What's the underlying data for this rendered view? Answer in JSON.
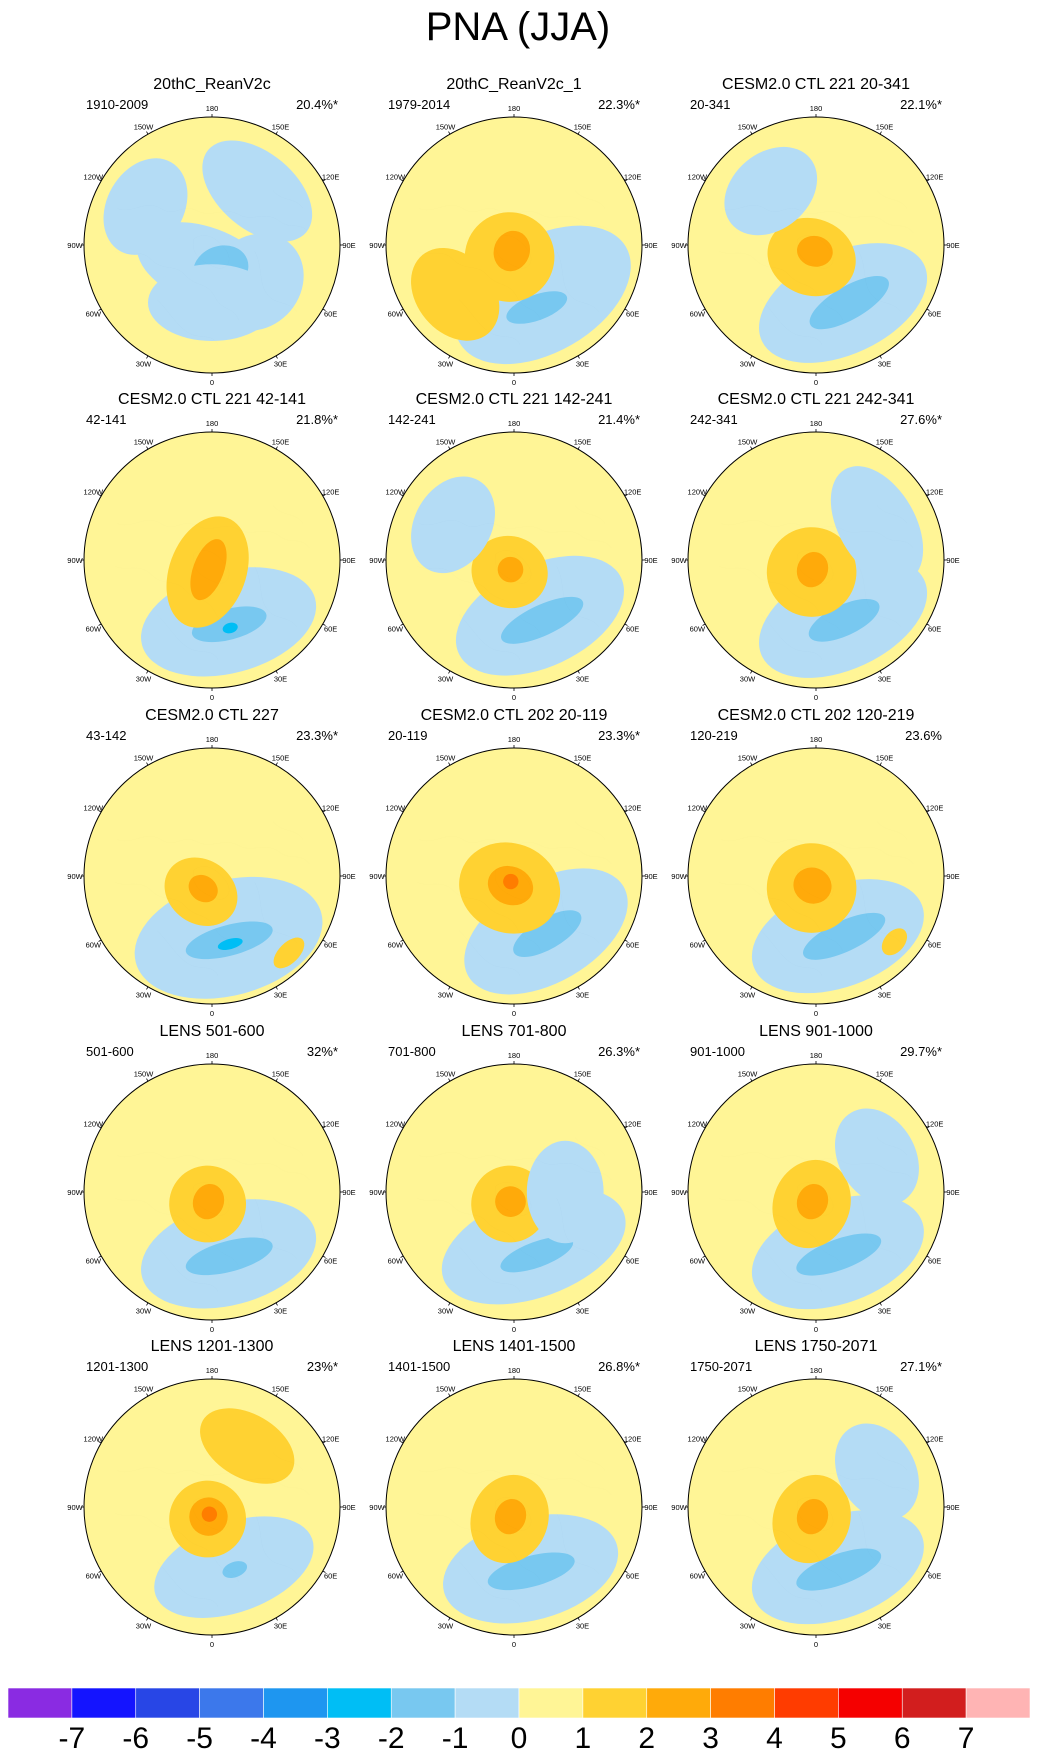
{
  "chart_data": {
    "type": "polar-contour-panels",
    "title": "PNA (JJA)",
    "longitude_labels": [
      "180",
      "150E",
      "120E",
      "90E",
      "60E",
      "30E",
      "0",
      "30W",
      "60W",
      "90W",
      "120W",
      "150W"
    ],
    "colorbar": {
      "labels": [
        "-7",
        "-6",
        "-5",
        "-4",
        "-3",
        "-2",
        "-1",
        "0",
        "1",
        "2",
        "3",
        "4",
        "5",
        "6",
        "7"
      ],
      "colors": [
        "#8a2be2",
        "#1414ff",
        "#2846e6",
        "#3c78eb",
        "#1e96f0",
        "#00bef5",
        "#78c8f0",
        "#b4dcf5",
        "#fff596",
        "#ffd232",
        "#ffaa0a",
        "#ff7d00",
        "#ff3c00",
        "#f50000",
        "#d21e1e",
        "#ffb4b4"
      ]
    },
    "panels": [
      {
        "title": "20thC_ReanV2c",
        "period": "1910-2009",
        "percent": "20.4%*",
        "features": [
          {
            "lon": 200,
            "r": 0.17,
            "value": -1,
            "w": 0.55,
            "h": 0.3
          },
          {
            "lon": 130,
            "r": 0.45,
            "value": -1,
            "w": 0.4,
            "h": 0.35
          },
          {
            "lon": 160,
            "r": 0.2,
            "value": -2,
            "w": 0.22,
            "h": 0.18
          },
          {
            "lon": 40,
            "r": 0.55,
            "value": -1,
            "w": 0.5,
            "h": 0.3
          },
          {
            "lon": 180,
            "r": 0.45,
            "value": -1,
            "w": 0.5,
            "h": 0.3
          },
          {
            "lon": 300,
            "r": 0.6,
            "value": -1,
            "w": 0.4,
            "h": 0.3
          }
        ]
      },
      {
        "title": "20thC_ReanV2c_1",
        "period": "1979-2014",
        "percent": "22.3%*",
        "features": [
          {
            "lon": 150,
            "r": 0.45,
            "value": -1,
            "w": 0.75,
            "h": 0.45
          },
          {
            "lon": 160,
            "r": 0.52,
            "value": -2,
            "w": 0.25,
            "h": 0.1
          },
          {
            "lon": 200,
            "r": 0.1,
            "value": 1,
            "w": 0.35,
            "h": 0.35
          },
          {
            "lon": 200,
            "r": 0.05,
            "value": 2,
            "w": 0.14,
            "h": 0.16
          },
          {
            "lon": 230,
            "r": 0.6,
            "value": 1,
            "w": 0.4,
            "h": 0.3
          }
        ]
      },
      {
        "title": "CESM2.0 CTL 221 20-341",
        "period": "20-341",
        "percent": "22.1%*",
        "features": [
          {
            "lon": 155,
            "r": 0.5,
            "value": -1,
            "w": 0.7,
            "h": 0.4
          },
          {
            "lon": 150,
            "r": 0.52,
            "value": -2,
            "w": 0.35,
            "h": 0.13
          },
          {
            "lon": 200,
            "r": 0.1,
            "value": 1,
            "w": 0.35,
            "h": 0.3
          },
          {
            "lon": 190,
            "r": 0.05,
            "value": 2,
            "w": 0.14,
            "h": 0.12
          },
          {
            "lon": 320,
            "r": 0.55,
            "value": -1,
            "w": 0.4,
            "h": 0.3
          }
        ]
      },
      {
        "title": "CESM2.0 CTL 221 42-141",
        "period": "42-141",
        "percent": "21.8%*",
        "features": [
          {
            "lon": 165,
            "r": 0.5,
            "value": -1,
            "w": 0.7,
            "h": 0.4
          },
          {
            "lon": 165,
            "r": 0.52,
            "value": -2,
            "w": 0.3,
            "h": 0.12
          },
          {
            "lon": 165,
            "r": 0.55,
            "value": -3,
            "w": 0.06,
            "h": 0.04
          },
          {
            "lon": 200,
            "r": 0.1,
            "value": 1,
            "w": 0.3,
            "h": 0.45
          },
          {
            "lon": 200,
            "r": 0.08,
            "value": 2,
            "w": 0.12,
            "h": 0.25
          }
        ]
      },
      {
        "title": "CESM2.0 CTL 221 142-241",
        "period": "142-241",
        "percent": "21.4%*",
        "features": [
          {
            "lon": 155,
            "r": 0.48,
            "value": -1,
            "w": 0.7,
            "h": 0.4
          },
          {
            "lon": 155,
            "r": 0.52,
            "value": -2,
            "w": 0.35,
            "h": 0.12
          },
          {
            "lon": 200,
            "r": 0.1,
            "value": 1,
            "w": 0.3,
            "h": 0.28
          },
          {
            "lon": 200,
            "r": 0.08,
            "value": 2,
            "w": 0.1,
            "h": 0.1
          },
          {
            "lon": 300,
            "r": 0.55,
            "value": -1,
            "w": 0.4,
            "h": 0.3
          }
        ]
      },
      {
        "title": "CESM2.0 CTL 221 242-341",
        "period": "242-341",
        "percent": "27.6%*",
        "features": [
          {
            "lon": 155,
            "r": 0.5,
            "value": -1,
            "w": 0.7,
            "h": 0.4
          },
          {
            "lon": 155,
            "r": 0.52,
            "value": -2,
            "w": 0.3,
            "h": 0.12
          },
          {
            "lon": 200,
            "r": 0.1,
            "value": 1,
            "w": 0.35,
            "h": 0.35
          },
          {
            "lon": 200,
            "r": 0.08,
            "value": 2,
            "w": 0.12,
            "h": 0.14
          },
          {
            "lon": 60,
            "r": 0.55,
            "value": -1,
            "w": 0.5,
            "h": 0.3
          }
        ]
      },
      {
        "title": "CESM2.0 CTL 227",
        "period": "43-142",
        "percent": "23.3%*",
        "features": [
          {
            "lon": 165,
            "r": 0.5,
            "value": -1,
            "w": 0.75,
            "h": 0.45
          },
          {
            "lon": 165,
            "r": 0.52,
            "value": -2,
            "w": 0.35,
            "h": 0.12
          },
          {
            "lon": 165,
            "r": 0.55,
            "value": -3,
            "w": 0.1,
            "h": 0.04
          },
          {
            "lon": 215,
            "r": 0.15,
            "value": 1,
            "w": 0.3,
            "h": 0.25
          },
          {
            "lon": 215,
            "r": 0.12,
            "value": 2,
            "w": 0.12,
            "h": 0.1
          },
          {
            "lon": 135,
            "r": 0.85,
            "value": 1,
            "w": 0.15,
            "h": 0.08
          }
        ]
      },
      {
        "title": "CESM2.0 CTL 202 20-119",
        "period": "20-119",
        "percent": "23.3%*",
        "features": [
          {
            "lon": 150,
            "r": 0.5,
            "value": -1,
            "w": 0.7,
            "h": 0.4
          },
          {
            "lon": 150,
            "r": 0.52,
            "value": -2,
            "w": 0.3,
            "h": 0.12
          },
          {
            "lon": 200,
            "r": 0.1,
            "value": 1,
            "w": 0.4,
            "h": 0.35
          },
          {
            "lon": 200,
            "r": 0.08,
            "value": 2,
            "w": 0.18,
            "h": 0.15
          },
          {
            "lon": 210,
            "r": 0.05,
            "value": 3,
            "w": 0.06,
            "h": 0.06
          }
        ]
      },
      {
        "title": "CESM2.0 CTL 202 120-219",
        "period": "120-219",
        "percent": "23.6%",
        "features": [
          {
            "lon": 160,
            "r": 0.5,
            "value": -1,
            "w": 0.7,
            "h": 0.4
          },
          {
            "lon": 155,
            "r": 0.52,
            "value": -2,
            "w": 0.35,
            "h": 0.12
          },
          {
            "lon": 200,
            "r": 0.1,
            "value": 1,
            "w": 0.35,
            "h": 0.35
          },
          {
            "lon": 200,
            "r": 0.08,
            "value": 2,
            "w": 0.15,
            "h": 0.14
          },
          {
            "lon": 130,
            "r": 0.8,
            "value": 1,
            "w": 0.12,
            "h": 0.08
          }
        ]
      },
      {
        "title": "LENS 501-600",
        "period": "501-600",
        "percent": "32%*",
        "features": [
          {
            "lon": 165,
            "r": 0.5,
            "value": -1,
            "w": 0.7,
            "h": 0.4
          },
          {
            "lon": 165,
            "r": 0.52,
            "value": -2,
            "w": 0.35,
            "h": 0.12
          },
          {
            "lon": 200,
            "r": 0.1,
            "value": 1,
            "w": 0.3,
            "h": 0.3
          },
          {
            "lon": 200,
            "r": 0.08,
            "value": 2,
            "w": 0.12,
            "h": 0.14
          }
        ]
      },
      {
        "title": "LENS 701-800",
        "period": "701-800",
        "percent": "26.3%*",
        "features": [
          {
            "lon": 160,
            "r": 0.45,
            "value": -1,
            "w": 0.75,
            "h": 0.4
          },
          {
            "lon": 160,
            "r": 0.52,
            "value": -2,
            "w": 0.3,
            "h": 0.1
          },
          {
            "lon": 200,
            "r": 0.1,
            "value": 1,
            "w": 0.3,
            "h": 0.3
          },
          {
            "lon": 200,
            "r": 0.08,
            "value": 2,
            "w": 0.12,
            "h": 0.12
          },
          {
            "lon": 90,
            "r": 0.4,
            "value": -1,
            "w": 0.4,
            "h": 0.3
          }
        ]
      },
      {
        "title": "LENS 901-1000",
        "period": "901-1000",
        "percent": "29.7%*",
        "features": [
          {
            "lon": 160,
            "r": 0.5,
            "value": -1,
            "w": 0.7,
            "h": 0.4
          },
          {
            "lon": 160,
            "r": 0.52,
            "value": -2,
            "w": 0.35,
            "h": 0.12
          },
          {
            "lon": 200,
            "r": 0.1,
            "value": 1,
            "w": 0.3,
            "h": 0.35
          },
          {
            "lon": 200,
            "r": 0.08,
            "value": 2,
            "w": 0.12,
            "h": 0.14
          },
          {
            "lon": 60,
            "r": 0.55,
            "value": -1,
            "w": 0.4,
            "h": 0.3
          }
        ]
      },
      {
        "title": "LENS 1201-1300",
        "period": "1201-1300",
        "percent": "23%*",
        "features": [
          {
            "lon": 160,
            "r": 0.5,
            "value": -1,
            "w": 0.65,
            "h": 0.35
          },
          {
            "lon": 160,
            "r": 0.52,
            "value": -2,
            "w": 0.1,
            "h": 0.06
          },
          {
            "lon": 200,
            "r": 0.1,
            "value": 1,
            "w": 0.3,
            "h": 0.3
          },
          {
            "lon": 200,
            "r": 0.08,
            "value": 2,
            "w": 0.15,
            "h": 0.15
          },
          {
            "lon": 200,
            "r": 0.06,
            "value": 3,
            "w": 0.06,
            "h": 0.06
          },
          {
            "lon": 30,
            "r": 0.55,
            "value": 1,
            "w": 0.4,
            "h": 0.25
          }
        ]
      },
      {
        "title": "LENS 1401-1500",
        "period": "1401-1500",
        "percent": "26.8%*",
        "features": [
          {
            "lon": 165,
            "r": 0.5,
            "value": -1,
            "w": 0.7,
            "h": 0.4
          },
          {
            "lon": 165,
            "r": 0.52,
            "value": -2,
            "w": 0.35,
            "h": 0.12
          },
          {
            "lon": 200,
            "r": 0.1,
            "value": 1,
            "w": 0.3,
            "h": 0.35
          },
          {
            "lon": 200,
            "r": 0.08,
            "value": 2,
            "w": 0.12,
            "h": 0.14
          }
        ]
      },
      {
        "title": "LENS 1750-2071",
        "period": "1750-2071",
        "percent": "27.1%*",
        "features": [
          {
            "lon": 160,
            "r": 0.5,
            "value": -1,
            "w": 0.7,
            "h": 0.4
          },
          {
            "lon": 160,
            "r": 0.52,
            "value": -2,
            "w": 0.35,
            "h": 0.12
          },
          {
            "lon": 200,
            "r": 0.1,
            "value": 1,
            "w": 0.3,
            "h": 0.35
          },
          {
            "lon": 200,
            "r": 0.08,
            "value": 2,
            "w": 0.12,
            "h": 0.14
          },
          {
            "lon": 60,
            "r": 0.55,
            "value": -1,
            "w": 0.4,
            "h": 0.3
          }
        ]
      }
    ]
  }
}
